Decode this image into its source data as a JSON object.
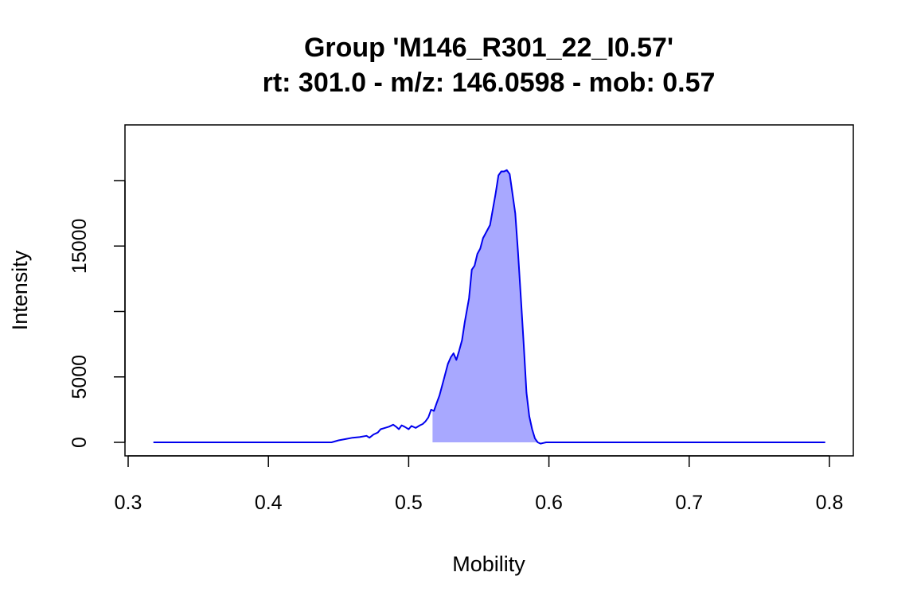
{
  "chart_data": {
    "type": "area",
    "title": "Group 'M146_R301_22_I0.57'",
    "subtitle": "rt: 301.0 - m/z: 146.0598 - mob: 0.57",
    "xlabel": "Mobility",
    "ylabel": "Intensity",
    "xlim": [
      0.3,
      0.8
    ],
    "ylim": [
      0,
      20000
    ],
    "x_ticks": [
      0.3,
      0.4,
      0.5,
      0.6,
      0.7,
      0.8
    ],
    "x_tick_labels": [
      "0.3",
      "0.4",
      "0.5",
      "0.6",
      "0.7",
      "0.8"
    ],
    "y_ticks": [
      0,
      5000,
      10000,
      15000,
      20000
    ],
    "y_tick_labels": [
      "0",
      "5000",
      "",
      "15000",
      ""
    ],
    "line_color": "#0000ee",
    "fill_color": "#a8a8ff",
    "shaded_range": [
      0.517,
      0.6
    ],
    "series": [
      {
        "x": [
          0.318,
          0.445,
          0.45,
          0.455,
          0.46,
          0.465,
          0.47,
          0.472,
          0.475,
          0.478,
          0.48,
          0.483,
          0.486,
          0.489,
          0.491,
          0.493,
          0.495,
          0.497,
          0.5,
          0.502,
          0.505,
          0.508,
          0.51,
          0.512,
          0.514,
          0.516,
          0.518,
          0.52,
          0.522,
          0.525,
          0.528,
          0.53,
          0.532,
          0.534,
          0.536,
          0.538,
          0.54,
          0.543,
          0.545,
          0.547,
          0.549,
          0.551,
          0.553,
          0.556,
          0.558,
          0.56,
          0.562,
          0.564,
          0.566,
          0.568,
          0.57,
          0.572,
          0.574,
          0.576,
          0.578,
          0.58,
          0.582,
          0.584,
          0.586,
          0.588,
          0.59,
          0.592,
          0.594,
          0.596,
          0.598,
          0.6,
          0.602,
          0.605,
          0.61,
          0.7,
          0.797
        ],
        "y": [
          0,
          0,
          150,
          250,
          350,
          400,
          500,
          350,
          600,
          750,
          1000,
          1100,
          1200,
          1350,
          1200,
          1000,
          1300,
          1200,
          1000,
          1250,
          1100,
          1300,
          1400,
          1600,
          1900,
          2500,
          2400,
          3000,
          3600,
          4800,
          6000,
          6500,
          6800,
          6300,
          7000,
          7800,
          9200,
          11000,
          13200,
          13500,
          14400,
          14800,
          15600,
          16200,
          16600,
          17800,
          19000,
          20400,
          20700,
          20700,
          20800,
          20500,
          19000,
          17500,
          14500,
          11000,
          7500,
          3800,
          2000,
          1000,
          300,
          0,
          -100,
          -50,
          0,
          0,
          0,
          0,
          0,
          0,
          0
        ]
      }
    ]
  }
}
